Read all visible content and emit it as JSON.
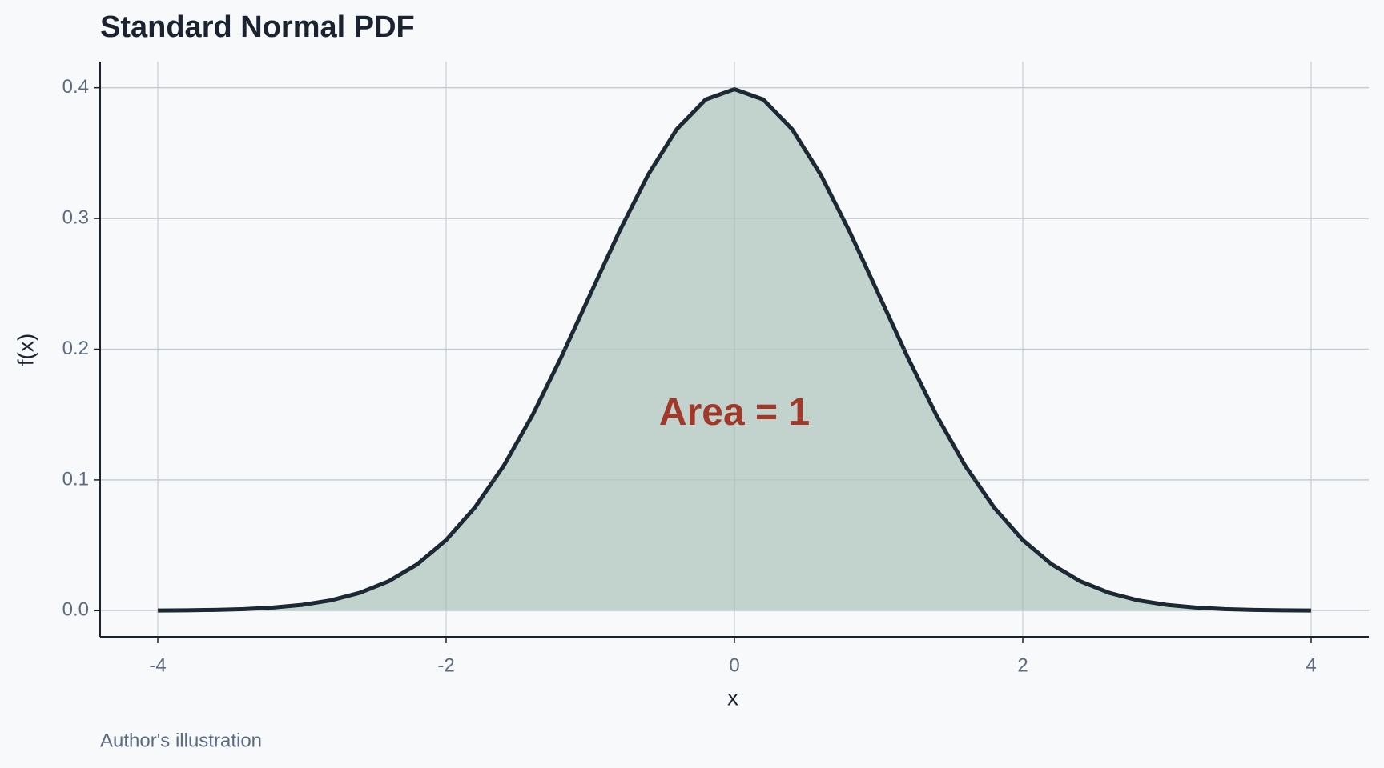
{
  "chart_data": {
    "type": "area",
    "title": "Standard Normal PDF",
    "xlabel": "x",
    "ylabel": "f(x)",
    "caption": "Author's illustration",
    "annotations": [
      {
        "text": "Area = 1",
        "x": 0,
        "y": 0.15,
        "color": "#a0392a"
      }
    ],
    "x": [
      -4,
      -3.8,
      -3.6,
      -3.4,
      -3.2,
      -3,
      -2.8,
      -2.6,
      -2.4,
      -2.2,
      -2,
      -1.8,
      -1.6,
      -1.4,
      -1.2,
      -1,
      -0.8,
      -0.6,
      -0.4,
      -0.2,
      0,
      0.2,
      0.4,
      0.6,
      0.8,
      1,
      1.2,
      1.4,
      1.6,
      1.8,
      2,
      2.2,
      2.4,
      2.6,
      2.8,
      3,
      3.2,
      3.4,
      3.6,
      3.8,
      4
    ],
    "series": [
      {
        "name": "f(x)",
        "color": "#1c2833",
        "fill": "#bfd1cb",
        "values": [
          0.0001,
          0.0003,
          0.0006,
          0.0012,
          0.0024,
          0.0044,
          0.0079,
          0.0136,
          0.0224,
          0.0355,
          0.054,
          0.079,
          0.1109,
          0.1497,
          0.1942,
          0.242,
          0.2897,
          0.3332,
          0.3683,
          0.391,
          0.3989,
          0.391,
          0.3683,
          0.3332,
          0.2897,
          0.242,
          0.1942,
          0.1497,
          0.1109,
          0.079,
          0.054,
          0.0355,
          0.0224,
          0.0136,
          0.0079,
          0.0044,
          0.0024,
          0.0012,
          0.0006,
          0.0003,
          0.0001
        ]
      }
    ],
    "xlim": [
      -4.4,
      4.4
    ],
    "ylim": [
      -0.02,
      0.42
    ],
    "xticks": [
      -4,
      -2,
      0,
      2,
      4
    ],
    "yticks": [
      {
        "value": 0,
        "label": "0.0"
      },
      0.1,
      0.2,
      0.3,
      0.4
    ],
    "grid": true
  }
}
